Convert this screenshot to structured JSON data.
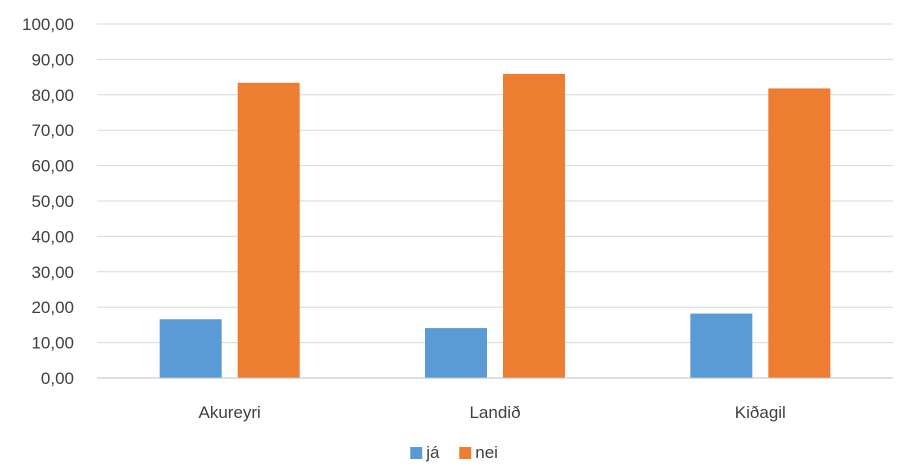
{
  "chart_data": {
    "type": "bar",
    "title": "",
    "xlabel": "",
    "ylabel": "",
    "categories": [
      "Akureyri",
      "Landið",
      "Kiðagil"
    ],
    "series": [
      {
        "name": "já",
        "color": "#5b9bd5",
        "values": [
          16.6,
          14.1,
          18.2
        ]
      },
      {
        "name": "nei",
        "color": "#ed7d31",
        "values": [
          83.4,
          85.9,
          81.8
        ]
      }
    ],
    "ylim": [
      0,
      100
    ],
    "yticks": [
      "0,00",
      "10,00",
      "20,00",
      "30,00",
      "40,00",
      "50,00",
      "60,00",
      "70,00",
      "80,00",
      "90,00",
      "100,00"
    ],
    "grid": true,
    "legend_position": "bottom"
  }
}
